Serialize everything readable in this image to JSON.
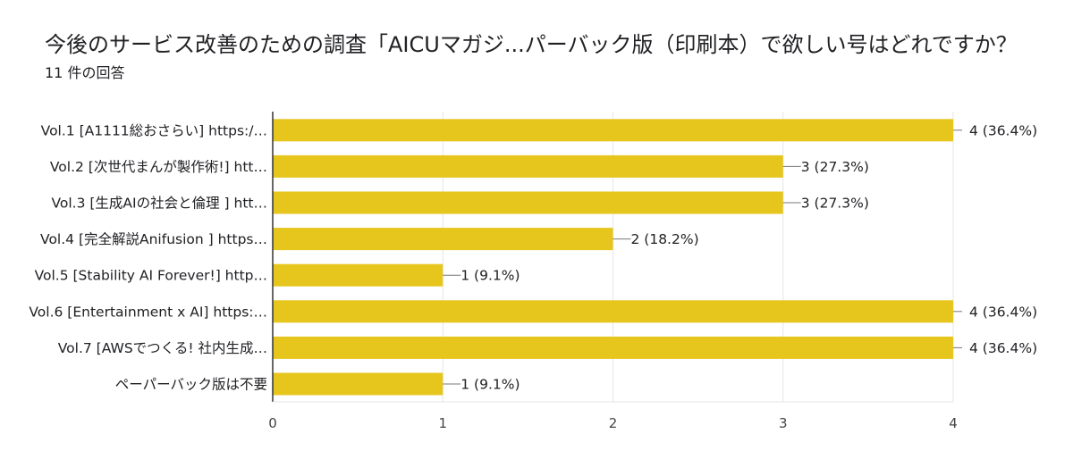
{
  "header": {
    "title": "今後のサービス改善のための調査「AICUマガジ...パーバック版（印刷本）で欲しい号はどれですか？",
    "response_count": "11 件の回答"
  },
  "colors": {
    "bar": "#e6c51d",
    "grid": "#e6e6e6",
    "axis": "#333333",
    "leader": "#777777"
  },
  "chart_data": {
    "type": "bar",
    "orientation": "horizontal",
    "title": "今後のサービス改善のための調査「AICUマガジ...パーバック版（印刷本）で欲しい号はどれですか？",
    "xlabel": "",
    "ylabel": "",
    "xlim": [
      0,
      4
    ],
    "ticks": [
      0,
      1,
      2,
      3,
      4
    ],
    "tick_labels": [
      "0",
      "1",
      "2",
      "3",
      "4"
    ],
    "grid": true,
    "categories": [
      "Vol.1 [A1111総おさらい] https:/…",
      "Vol.2 [次世代まんが製作術!] htt…",
      "Vol.3 [生成AIの社会と倫理 ] htt…",
      "Vol.4 [完全解説Anifusion ] https…",
      "Vol.5 [Stability AI Forever!] http…",
      "Vol.6 [Entertainment x AI] https:…",
      "Vol.7 [AWSでつくる! 社内生成…",
      "ペーパーバック版は不要"
    ],
    "values": [
      4,
      3,
      3,
      2,
      1,
      4,
      4,
      1
    ],
    "value_labels": [
      "4 (36.4%)",
      "3 (27.3%)",
      "3 (27.3%)",
      "2 (18.2%)",
      "1 (9.1%)",
      "4 (36.4%)",
      "4 (36.4%)",
      "1 (9.1%)"
    ]
  }
}
